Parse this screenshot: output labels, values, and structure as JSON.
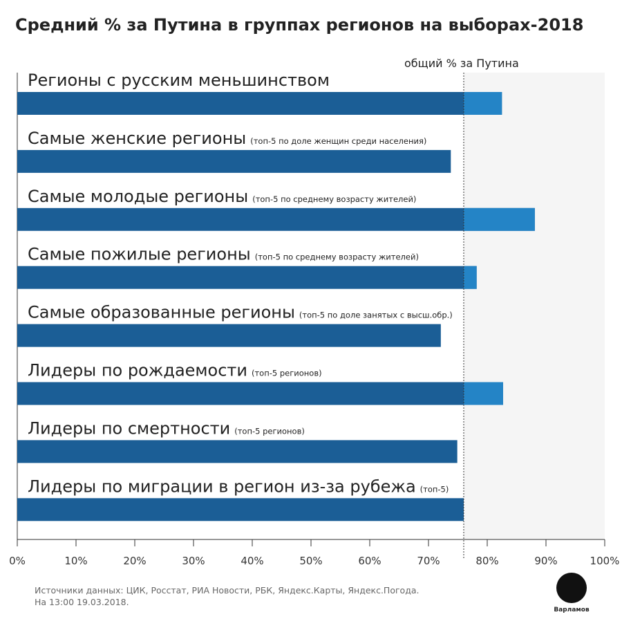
{
  "chart_data": {
    "type": "bar",
    "orientation": "horizontal",
    "title": "Средний % за Путина в группах регионов на выборах-2018",
    "categories": [
      "Регионы с русским меньшинством",
      "Самые женские регионы",
      "Самые молодые регионы",
      "Самые пожилые регионы",
      "Самые образованные регионы",
      "Лидеры по рождаемости",
      "Лидеры по смертности",
      "Лидеры по миграции в регион из-за рубежа"
    ],
    "notes": [
      null,
      "(топ-5 по доле женщин среди населения)",
      "(топ-5 по среднему возрасту жителей)",
      "(топ-5 по среднему возрасту жителей)",
      "(топ-5 по доле занятых с высш.обр.)",
      "(топ-5 регионов)",
      "(топ-5 регионов)",
      "(топ-5)"
    ],
    "values": [
      82.5,
      73.8,
      88.1,
      78.2,
      72.1,
      82.7,
      74.9,
      76.0
    ],
    "color": "#1b5e96",
    "above_reference_color": "#2484c6",
    "reference_line": 76.0,
    "reference_label": "общий % за Путина",
    "xlim": [
      0,
      100
    ],
    "xticks": [
      {
        "value": 0,
        "label": "0%"
      },
      {
        "value": 10,
        "label": "10%"
      },
      {
        "value": 20,
        "label": "20%"
      },
      {
        "value": 30,
        "label": "30%"
      },
      {
        "value": 40,
        "label": "40%"
      },
      {
        "value": 50,
        "label": "50%"
      },
      {
        "value": 60,
        "label": "60%"
      },
      {
        "value": 70,
        "label": "70%"
      },
      {
        "value": 80,
        "label": "80%"
      },
      {
        "value": 90,
        "label": "90%"
      },
      {
        "value": 100,
        "label": "100%"
      }
    ],
    "source": [
      "Источники данных: ЦИК, Росстат, РИА Новости, РБК, Яндекс.Карты, Яндекс.Погода.",
      "На 13:00 19.03.2018."
    ],
    "logo": "Варламов"
  }
}
